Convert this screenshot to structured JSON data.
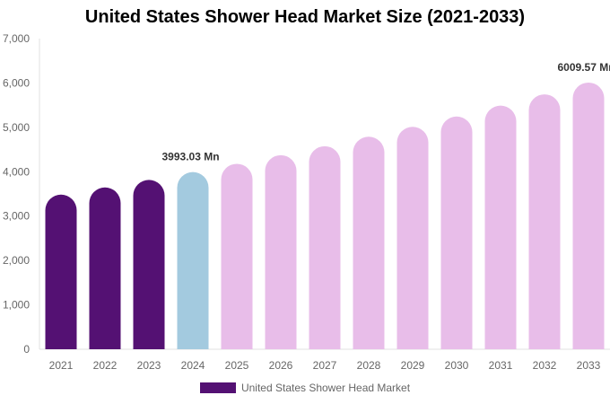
{
  "chart_data": {
    "type": "bar",
    "title": "United States Shower Head Market Size (2021-2033)",
    "xlabel": "",
    "ylabel": "",
    "categories": [
      "2021",
      "2022",
      "2023",
      "2024",
      "2025",
      "2026",
      "2027",
      "2028",
      "2029",
      "2030",
      "2031",
      "2032",
      "2033"
    ],
    "series": [
      {
        "name": "United States Shower Head Market",
        "values": [
          3484,
          3646,
          3816,
          3993.03,
          4179,
          4373,
          4576,
          4789,
          5012,
          5245,
          5489,
          5744,
          6009.57
        ]
      }
    ],
    "data_labels": [
      {
        "category": "2024",
        "text": "3993.03 Mn"
      },
      {
        "category": "2033",
        "text": "6009.57 Mn"
      }
    ],
    "ylim": [
      0,
      7000
    ],
    "yticks": [
      0,
      1000,
      2000,
      3000,
      4000,
      5000,
      6000,
      7000
    ],
    "ytick_labels": [
      "0",
      "1,000",
      "2,000",
      "3,000",
      "4,000",
      "5,000",
      "6,000",
      "7,000"
    ],
    "grid": false,
    "legend_position": "bottom",
    "colors": {
      "historical": "#541173",
      "base_year": "#a3cadf",
      "forecast": "#e8bde9"
    },
    "color_by_category": [
      "historical",
      "historical",
      "historical",
      "base_year",
      "forecast",
      "forecast",
      "forecast",
      "forecast",
      "forecast",
      "forecast",
      "forecast",
      "forecast",
      "forecast"
    ]
  }
}
